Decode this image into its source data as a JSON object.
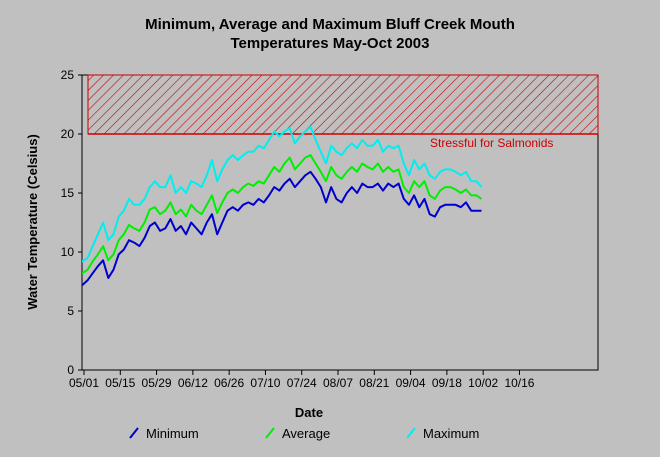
{
  "chart_data": {
    "type": "line",
    "title_line1": "Minimum, Average and Maximum Bluff Creek Mouth",
    "title_line2": "Temperatures May-Oct 2003",
    "xlabel": "Date",
    "ylabel": "Water Temperature (Celsius)",
    "ylim": [
      0,
      25
    ],
    "yticks": [
      "0",
      "5",
      "10",
      "15",
      "20",
      "25"
    ],
    "x_tick_labels": [
      "05/01",
      "05/15",
      "05/29",
      "06/12",
      "06/26",
      "07/10",
      "07/24",
      "08/07",
      "08/21",
      "09/04",
      "09/18",
      "10/02",
      "10/16"
    ],
    "grid": false,
    "legend_placement": "bottom",
    "stress_band": {
      "from": 20,
      "to": 25,
      "label": "Stressful for Salmonids",
      "color": "#cc0000"
    },
    "dates": [
      "05/01",
      "05/03",
      "05/05",
      "05/07",
      "05/09",
      "05/11",
      "05/13",
      "05/15",
      "05/17",
      "05/19",
      "05/21",
      "05/23",
      "05/25",
      "05/27",
      "05/29",
      "05/31",
      "06/02",
      "06/04",
      "06/06",
      "06/08",
      "06/10",
      "06/12",
      "06/14",
      "06/16",
      "06/18",
      "06/20",
      "06/22",
      "06/24",
      "06/26",
      "06/28",
      "06/30",
      "07/02",
      "07/04",
      "07/06",
      "07/08",
      "07/10",
      "07/12",
      "07/14",
      "07/16",
      "07/18",
      "07/20",
      "07/22",
      "07/24",
      "07/26",
      "07/28",
      "07/30",
      "08/01",
      "08/03",
      "08/05",
      "08/07",
      "08/09",
      "08/11",
      "08/13",
      "08/15",
      "08/17",
      "08/19",
      "08/21",
      "08/23",
      "08/25",
      "08/27",
      "08/29",
      "08/31",
      "09/02",
      "09/04",
      "09/06",
      "09/08",
      "09/10",
      "09/12",
      "09/14",
      "09/16",
      "09/18",
      "09/20",
      "09/22",
      "09/24",
      "09/26",
      "09/28",
      "09/30",
      "10/02",
      "10/04",
      "10/06"
    ],
    "series": [
      {
        "name": "Minimum",
        "color": "#0000cc",
        "values": [
          7.5,
          7.8,
          7.2,
          7.6,
          8.2,
          8.8,
          9.3,
          7.8,
          8.5,
          9.8,
          10.2,
          11.0,
          10.8,
          10.5,
          11.2,
          12.2,
          12.5,
          11.8,
          12.0,
          12.8,
          11.8,
          12.2,
          11.5,
          12.5,
          12.0,
          11.5,
          12.5,
          13.2,
          11.5,
          12.5,
          13.5,
          13.8,
          13.5,
          14.0,
          14.2,
          14.0,
          14.5,
          14.2,
          14.8,
          15.5,
          15.2,
          15.8,
          16.2,
          15.5,
          16.0,
          16.5,
          16.8,
          16.2,
          15.5,
          14.2,
          15.5,
          14.5,
          14.2,
          15.0,
          15.5,
          15.0,
          15.8,
          15.5,
          15.5,
          15.8,
          15.2,
          15.8,
          15.5,
          15.8,
          14.5,
          14.0,
          14.8,
          13.8,
          14.5,
          13.2,
          13.0,
          13.8,
          14.0,
          14.0,
          14.0,
          13.8,
          14.2,
          13.5,
          13.5,
          13.5
        ]
      },
      {
        "name": "Average",
        "color": "#00ee00",
        "values": [
          8.5,
          8.6,
          8.2,
          8.5,
          9.2,
          9.8,
          10.5,
          9.3,
          9.8,
          11.0,
          11.5,
          12.3,
          12.0,
          11.8,
          12.5,
          13.6,
          13.8,
          13.2,
          13.5,
          14.2,
          13.2,
          13.6,
          13.0,
          14.0,
          13.5,
          13.2,
          14.0,
          14.8,
          13.3,
          14.2,
          15.0,
          15.3,
          15.0,
          15.5,
          15.8,
          15.6,
          16.0,
          15.8,
          16.5,
          17.2,
          16.8,
          17.5,
          18.0,
          17.0,
          17.5,
          18.0,
          18.2,
          17.5,
          16.8,
          16.0,
          17.2,
          16.5,
          16.2,
          16.8,
          17.2,
          16.8,
          17.5,
          17.2,
          17.0,
          17.5,
          16.8,
          17.2,
          16.8,
          17.0,
          15.5,
          15.0,
          16.0,
          15.5,
          16.0,
          14.8,
          14.5,
          15.2,
          15.5,
          15.5,
          15.3,
          15.0,
          15.3,
          14.8,
          14.8,
          14.5
        ]
      },
      {
        "name": "Maximum",
        "color": "#00eeee",
        "values": [
          9.5,
          9.5,
          9.2,
          9.5,
          10.5,
          11.5,
          12.5,
          11.0,
          11.5,
          13.0,
          13.5,
          14.5,
          14.0,
          14.0,
          14.5,
          15.5,
          16.0,
          15.5,
          15.5,
          16.5,
          15.0,
          15.5,
          15.0,
          16.0,
          15.8,
          15.5,
          16.5,
          17.8,
          16.0,
          17.0,
          17.8,
          18.2,
          17.8,
          18.2,
          18.5,
          18.5,
          19.0,
          18.8,
          19.5,
          20.2,
          19.8,
          20.2,
          20.5,
          19.2,
          19.8,
          20.2,
          20.6,
          19.5,
          18.5,
          17.5,
          19.0,
          18.5,
          18.2,
          18.8,
          19.2,
          18.8,
          19.5,
          19.0,
          19.0,
          19.5,
          18.5,
          19.0,
          18.8,
          19.0,
          17.5,
          16.5,
          17.8,
          17.0,
          17.5,
          16.5,
          16.2,
          16.8,
          17.0,
          17.0,
          16.8,
          16.5,
          16.8,
          16.0,
          16.0,
          15.5
        ]
      }
    ]
  }
}
